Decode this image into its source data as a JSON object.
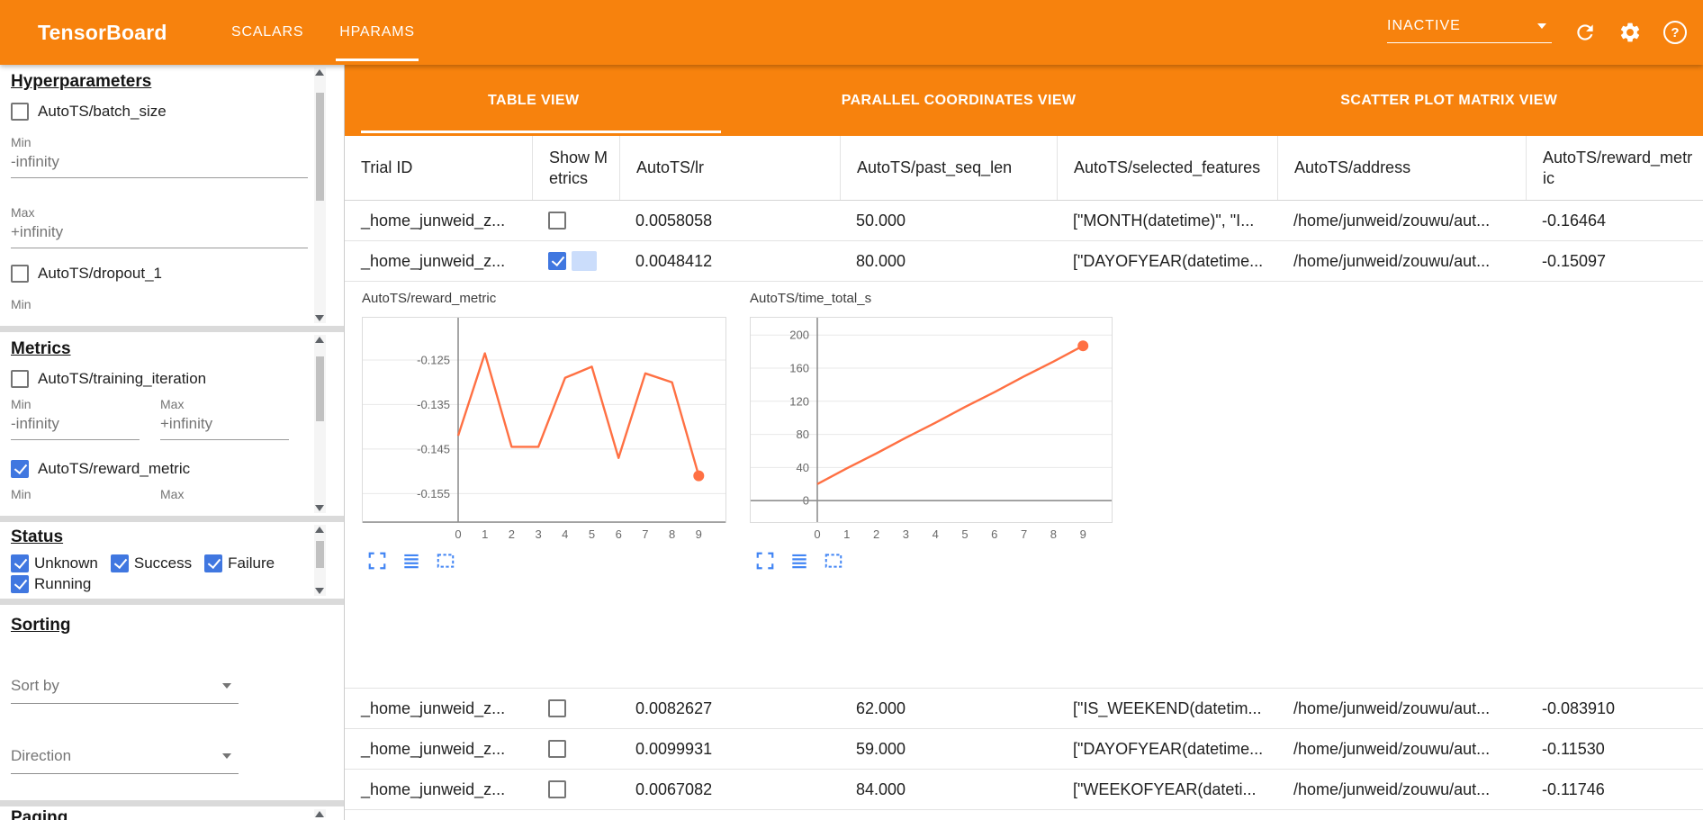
{
  "colors": {
    "toolbar_orange": "#f7820d",
    "accent_blue": "#4077e0",
    "icon_blue": "#4285f4"
  },
  "icons": {
    "header": [
      "refresh-icon",
      "settings-icon",
      "help-icon"
    ],
    "help_glyph": "?",
    "chart_toolbar": [
      "fullscreen-icon",
      "data-view-icon",
      "zoom-reset-icon"
    ]
  },
  "header": {
    "app_title": "TensorBoard",
    "nav_tabs": [
      {
        "label": "SCALARS",
        "active": false
      },
      {
        "label": "HPARAMS",
        "active": true
      }
    ],
    "run_selector": {
      "value": "INACTIVE"
    }
  },
  "sidebar": {
    "hyperparameters": {
      "title": "Hyperparameters",
      "params": [
        {
          "label": "AutoTS/batch_size",
          "checked": false,
          "min": {
            "label": "Min",
            "value": "-infinity"
          },
          "max": {
            "label": "Max",
            "value": "+infinity"
          }
        },
        {
          "label": "AutoTS/dropout_1",
          "checked": false,
          "min": {
            "label": "Min"
          }
        }
      ]
    },
    "metrics": {
      "title": "Metrics",
      "items": [
        {
          "label": "AutoTS/training_iteration",
          "checked": false,
          "min": {
            "label": "Min",
            "value": "-infinity"
          },
          "max": {
            "label": "Max",
            "value": "+infinity"
          }
        },
        {
          "label": "AutoTS/reward_metric",
          "checked": true,
          "min": {
            "label": "Min"
          },
          "max": {
            "label": "Max"
          }
        }
      ]
    },
    "status": {
      "title": "Status",
      "options": [
        {
          "label": "Unknown",
          "checked": true
        },
        {
          "label": "Success",
          "checked": true
        },
        {
          "label": "Failure",
          "checked": true
        },
        {
          "label": "Running",
          "checked": true
        }
      ]
    },
    "sorting": {
      "title": "Sorting",
      "sort_by_label": "Sort by",
      "direction_label": "Direction"
    },
    "paging": {
      "title": "Paging"
    }
  },
  "main": {
    "view_tabs": [
      {
        "label": "TABLE VIEW",
        "active": true
      },
      {
        "label": "PARALLEL COORDINATES VIEW",
        "active": false
      },
      {
        "label": "SCATTER PLOT MATRIX VIEW",
        "active": false
      }
    ],
    "table": {
      "columns": [
        "Trial ID",
        "Show Metrics",
        "AutoTS/lr",
        "AutoTS/past_seq_len",
        "AutoTS/selected_features",
        "AutoTS/address",
        "AutoTS/reward_metric"
      ],
      "rows": [
        {
          "trial_id": "_home_junweid_z...",
          "show_metrics": false,
          "lr": "0.0058058",
          "past_seq_len": "50.000",
          "selected_features": "[\"MONTH(datetime)\", \"I...",
          "address": "/home/junweid/zouwu/aut...",
          "reward_metric": "-0.16464"
        },
        {
          "trial_id": "_home_junweid_z...",
          "show_metrics": true,
          "lr": "0.0048412",
          "past_seq_len": "80.000",
          "selected_features": "[\"DAYOFYEAR(datetime...",
          "address": "/home/junweid/zouwu/aut...",
          "reward_metric": "-0.15097"
        },
        {
          "trial_id": "_home_junweid_z...",
          "show_metrics": false,
          "lr": "0.0082627",
          "past_seq_len": "62.000",
          "selected_features": "[\"IS_WEEKEND(datetim...",
          "address": "/home/junweid/zouwu/aut...",
          "reward_metric": "-0.083910"
        },
        {
          "trial_id": "_home_junweid_z...",
          "show_metrics": false,
          "lr": "0.0099931",
          "past_seq_len": "59.000",
          "selected_features": "[\"DAYOFYEAR(datetime...",
          "address": "/home/junweid/zouwu/aut...",
          "reward_metric": "-0.11530"
        },
        {
          "trial_id": "_home_junweid_z...",
          "show_metrics": false,
          "lr": "0.0067082",
          "past_seq_len": "84.000",
          "selected_features": "[\"WEEKOFYEAR(dateti...",
          "address": "/home/junweid/zouwu/aut...",
          "reward_metric": "-0.11746"
        }
      ]
    }
  },
  "chart_data": [
    {
      "type": "line",
      "title": "AutoTS/reward_metric",
      "x": [
        0,
        1,
        2,
        3,
        4,
        5,
        6,
        7,
        8,
        9
      ],
      "values": [
        -0.142,
        -0.1235,
        -0.1445,
        -0.1445,
        -0.129,
        -0.1265,
        -0.147,
        -0.128,
        -0.13,
        -0.151
      ],
      "ylim": [
        -0.1616,
        -0.1153
      ],
      "yticks": [
        -0.155,
        -0.145,
        -0.135,
        -0.125
      ],
      "xlabel": "",
      "ylabel": "",
      "grid": true,
      "legend": "none",
      "line_color": "#ff7043",
      "endpoint_dot": true
    },
    {
      "type": "line",
      "title": "AutoTS/time_total_s",
      "x": [
        0,
        1,
        2,
        3,
        4,
        5,
        6,
        7,
        8,
        9
      ],
      "values": [
        20,
        39,
        57,
        76,
        94,
        113,
        131,
        150,
        168,
        187
      ],
      "ylim": [
        -27,
        222
      ],
      "yticks": [
        0,
        40,
        80,
        120,
        160,
        200
      ],
      "xlabel": "",
      "ylabel": "",
      "grid": true,
      "legend": "none",
      "line_color": "#ff7043",
      "endpoint_dot": true
    }
  ]
}
